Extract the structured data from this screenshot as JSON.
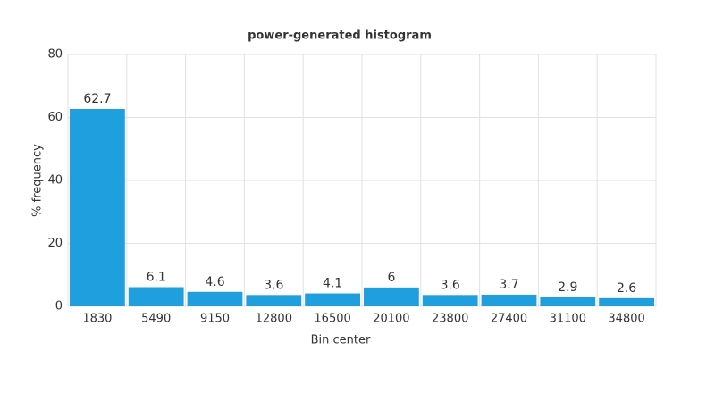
{
  "chart_data": {
    "type": "bar",
    "title": "power-generated histogram",
    "xlabel": "Bin center",
    "ylabel": "% frequency",
    "categories": [
      "1830",
      "5490",
      "9150",
      "12800",
      "16500",
      "20100",
      "23800",
      "27400",
      "31100",
      "34800"
    ],
    "values": [
      62.7,
      6.1,
      4.6,
      3.6,
      4.1,
      6,
      3.6,
      3.7,
      2.9,
      2.6
    ],
    "color": "#209fdf",
    "ylim": [
      0,
      80
    ],
    "yticks": [
      0,
      20,
      40,
      60,
      80
    ],
    "grid": true
  }
}
